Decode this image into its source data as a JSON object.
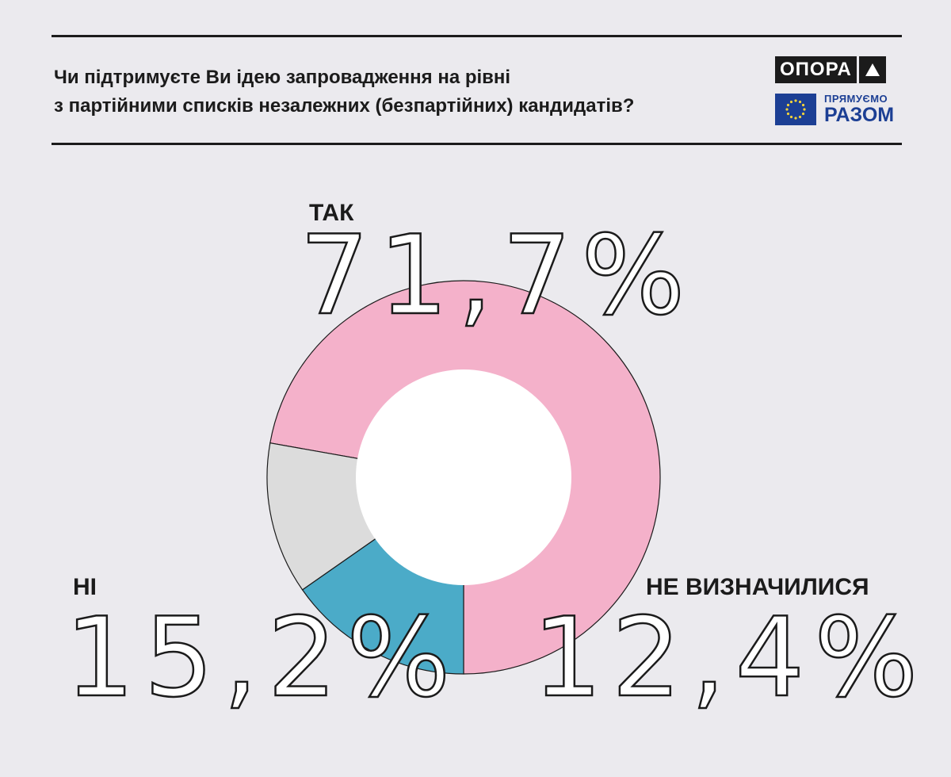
{
  "title": {
    "line1": "Чи підтримуєте Ви ідею запровадження на рівні",
    "line2": "з партійними списків незалежних (безпартійних) кандидатів?"
  },
  "logos": {
    "opora": "ОПОРА",
    "eu_line1": "ПРЯМУЄМО",
    "eu_line2": "РАЗОМ"
  },
  "colors": {
    "so": "#f4b1ca",
    "ni": "#4babc8",
    "undecided": "#dcdcdc",
    "eu_blue": "#1c3f94",
    "eu_star": "#f3d33a"
  },
  "chart_data": {
    "type": "pie",
    "donut": true,
    "categories": [
      "ТАК",
      "НІ",
      "НЕ ВИЗНАЧИЛИСЯ"
    ],
    "values": [
      71.7,
      15.2,
      12.4
    ],
    "value_labels": [
      "71,7%",
      "15,2%",
      "12,4%"
    ]
  }
}
